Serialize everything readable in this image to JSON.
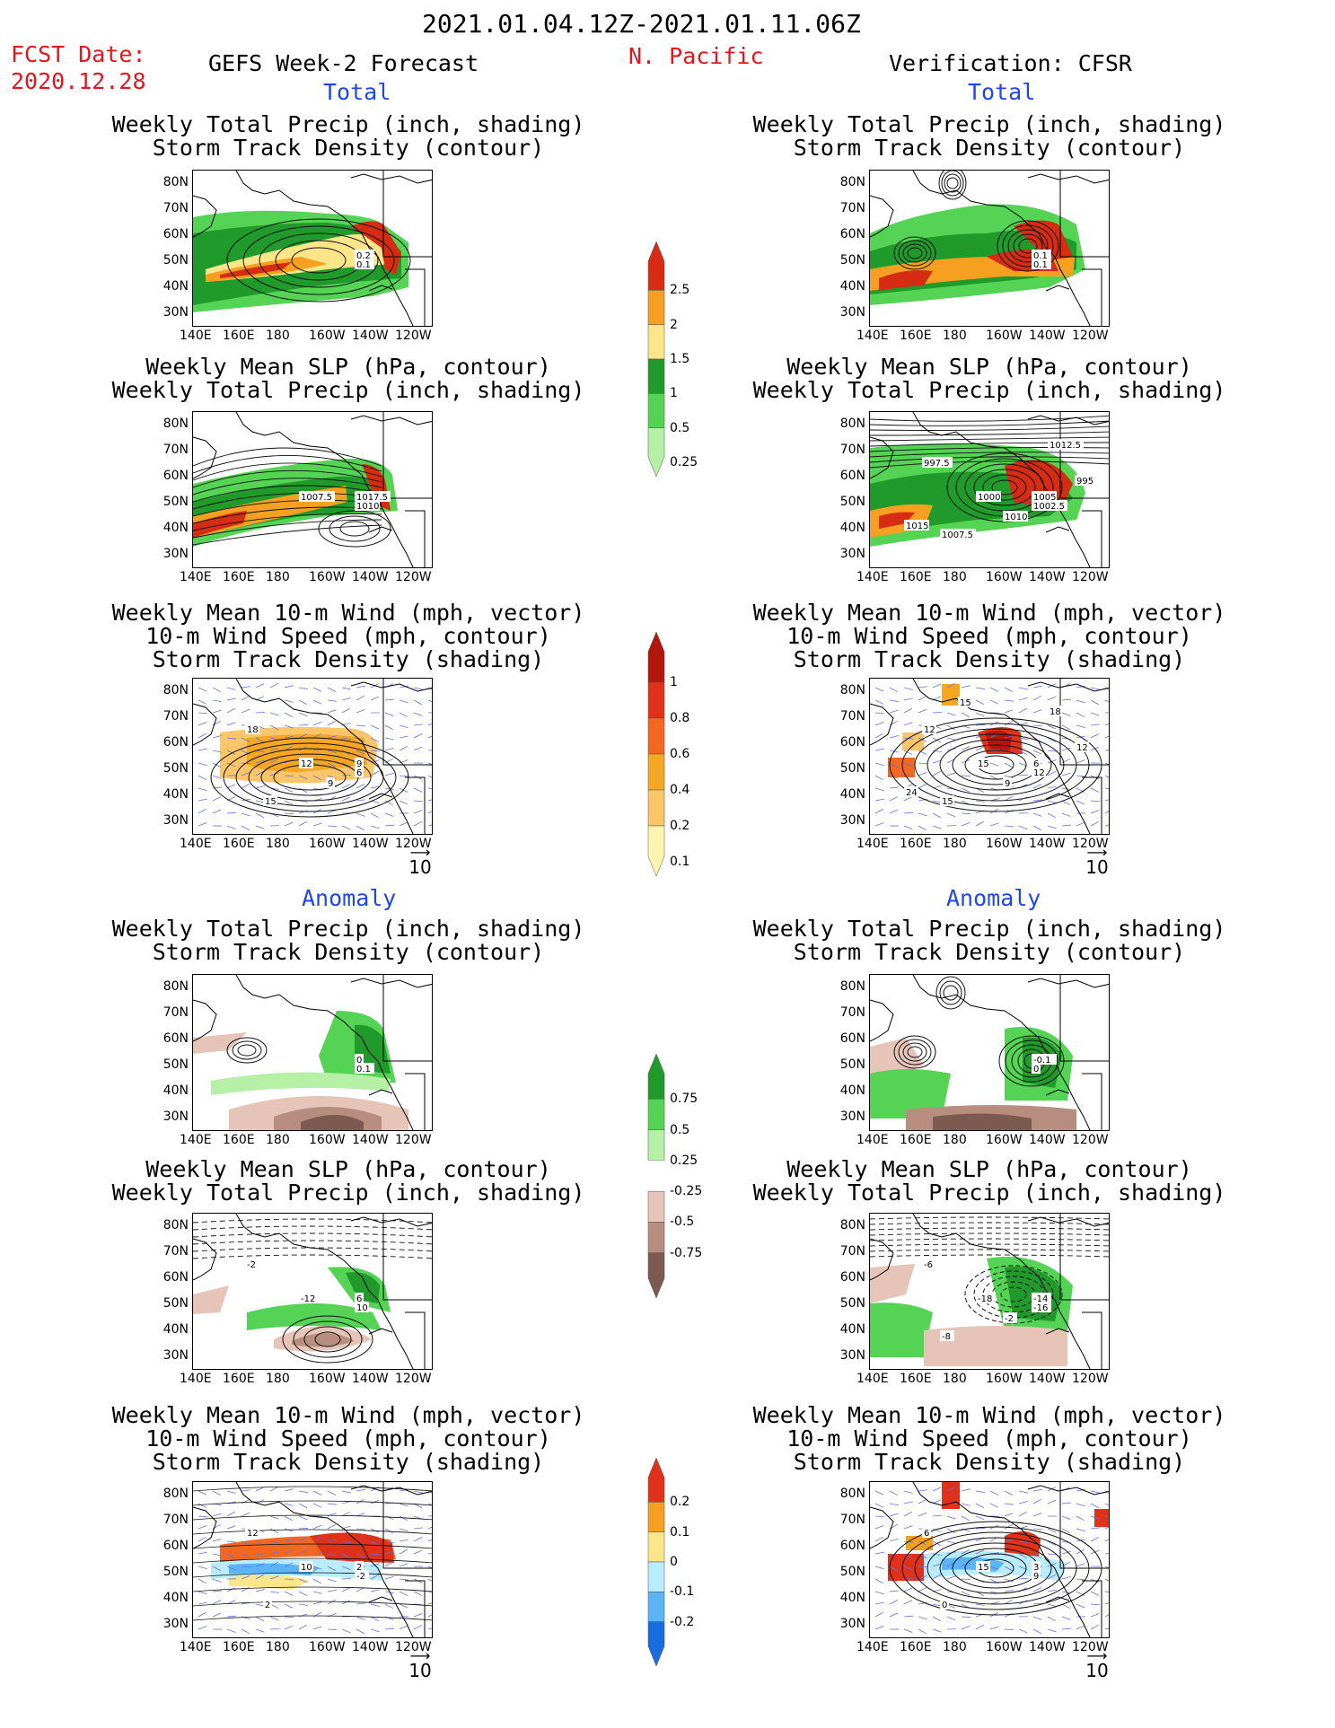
{
  "header": {
    "date_range": "2021.01.04.12Z-2021.01.11.06Z",
    "fcst_label": "FCST Date:",
    "fcst_date": "2020.12.28",
    "left_title": "GEFS Week-2 Forecast",
    "region": "N. Pacific",
    "right_title": "Verification: CFSR"
  },
  "sections": {
    "total": "Total",
    "anomaly": "Anomaly"
  },
  "panel_titles": {
    "precip_storm": [
      "Weekly Total Precip (inch, shading)",
      "Storm Track Density (contour)"
    ],
    "slp_precip": [
      "Weekly Mean SLP (hPa, contour)",
      "Weekly Total Precip (inch, shading)"
    ],
    "wind_storm": [
      "Weekly Mean 10-m Wind (mph, vector)",
      "10-m Wind Speed (mph, contour)",
      "Storm Track Density (shading)"
    ]
  },
  "axes": {
    "lat_ticks": [
      "80N",
      "70N",
      "60N",
      "50N",
      "40N",
      "30N"
    ],
    "lon_ticks": [
      "140E",
      "160E",
      "180",
      "160W",
      "140W",
      "120W"
    ]
  },
  "vector_ref": "10",
  "colorbars": {
    "precip_total": {
      "labels": [
        "2.5",
        "2",
        "1.5",
        "1",
        "0.5",
        "0.25"
      ],
      "colors": [
        "#d62c14",
        "#f5a020",
        "#fde68a",
        "#1f9a2b",
        "#54d354",
        "#b6f0a6"
      ]
    },
    "storm_total": {
      "labels": [
        "1",
        "0.8",
        "0.6",
        "0.4",
        "0.2",
        "0.1"
      ],
      "colors": [
        "#b3170c",
        "#e0321a",
        "#f26820",
        "#f5a623",
        "#fbc56a",
        "#fdf4b0"
      ]
    },
    "precip_anom": {
      "labels": [
        "0.75",
        "0.5",
        "0.25",
        "-0.25",
        "-0.5",
        "-0.75"
      ],
      "colors": [
        "#1f9a2b",
        "#54d354",
        "#b6f0a6",
        "#ffffff",
        "#e6c4b8",
        "#b78d80",
        "#7d5a4f"
      ]
    },
    "storm_anom": {
      "labels": [
        "0.2",
        "0.1",
        "0",
        "-0.1",
        "-0.2"
      ],
      "colors": [
        "#e0321a",
        "#f5a020",
        "#fde68a",
        "#b9ecff",
        "#5ab4f5",
        "#1a6de0"
      ]
    }
  },
  "map_labels": {
    "l1": [
      "0.2",
      "0.1"
    ],
    "r1": [
      "0.1",
      "0.1"
    ],
    "l2": [
      "1017.5",
      "1010",
      "1007.5"
    ],
    "r2": [
      "1005",
      "1002.5",
      "1000",
      "997.5",
      "1007.5",
      "1010",
      "1012.5",
      "1015",
      "995"
    ],
    "l3": [
      "9",
      "6",
      "12",
      "18",
      "15",
      "9"
    ],
    "r3": [
      "6",
      "12",
      "15",
      "12",
      "15",
      "9",
      "18",
      "24",
      "12",
      "15"
    ],
    "l4": [
      "0",
      "0.1"
    ],
    "r4": [
      "-0.1",
      "0"
    ],
    "l5": [
      "6",
      "10",
      "-12",
      "-2"
    ],
    "r5": [
      "-14",
      "-16",
      "-18",
      "-6",
      "-8",
      "-2"
    ],
    "l6": [
      "2",
      "-2",
      "10",
      "12",
      "2"
    ],
    "r6": [
      "3",
      "9",
      "15",
      "6",
      "0"
    ]
  }
}
